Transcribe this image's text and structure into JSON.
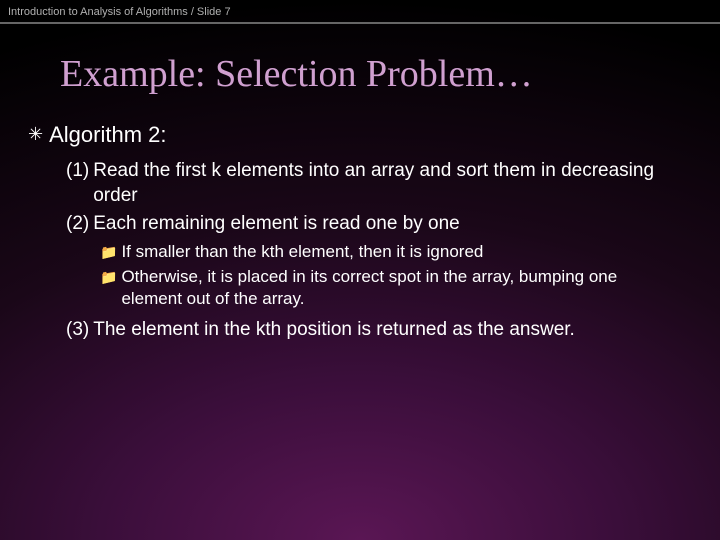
{
  "header": {
    "text": "Introduction to Analysis of Algorithms / Slide 7"
  },
  "title": {
    "text": "Example: Selection Problem…",
    "color": "#d0a0d0",
    "fontsize": 38,
    "fontfamily": "Times New Roman"
  },
  "content": {
    "level1": {
      "bullet_glyph": "✳",
      "text": "Algorithm 2:"
    },
    "steps": [
      {
        "num": "(1)",
        "text": "Read the first k elements into an array and sort them in decreasing order"
      },
      {
        "num": "(2)",
        "text": "Each remaining element is read one by one"
      }
    ],
    "substeps": [
      {
        "icon": "📁",
        "text": "If smaller than the kth element, then it is ignored"
      },
      {
        "icon": "📁",
        "text": "Otherwise, it is placed in its correct spot in the array, bumping one element out of the array."
      }
    ],
    "step3": {
      "num": "(3)",
      "text": "The element in the kth position is returned as the answer."
    }
  },
  "style": {
    "body_fontsize_l1": 22,
    "body_fontsize_l2": 19,
    "body_fontsize_l3": 17,
    "text_color": "#ffffff",
    "header_color": "#b0b0b0",
    "header_border": "#666666",
    "bg_gradient_inner": "#5a1654",
    "bg_gradient_outer": "#000000"
  }
}
